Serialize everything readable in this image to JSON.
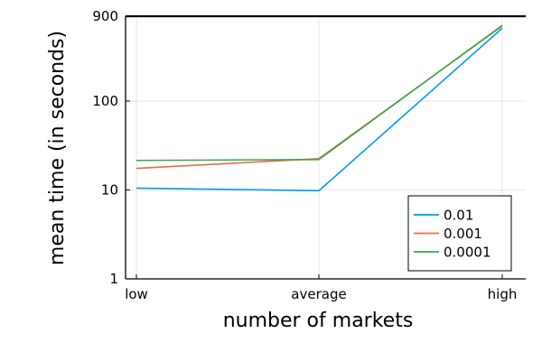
{
  "chart_data": {
    "type": "line",
    "categories": [
      "low",
      "average",
      "high"
    ],
    "xlabel": "number of markets",
    "ylabel": "mean time (in seconds)",
    "yscale": "log",
    "ylim": [
      1,
      900
    ],
    "yticks": [
      {
        "value": 1,
        "label": "1"
      },
      {
        "value": 10,
        "label": "10"
      },
      {
        "value": 100,
        "label": "100"
      },
      {
        "value": 900,
        "label": "900"
      }
    ],
    "grid": true,
    "legend_position": "bottom-right",
    "series": [
      {
        "name": "0.01",
        "values": [
          10.5,
          9.8,
          660
        ],
        "color": "#009AFA"
      },
      {
        "name": "0.001",
        "values": [
          17.5,
          22.5,
          700
        ],
        "color": "#E26F46"
      },
      {
        "name": "0.0001",
        "values": [
          21.5,
          22,
          710
        ],
        "color": "#3EA44E"
      }
    ]
  }
}
